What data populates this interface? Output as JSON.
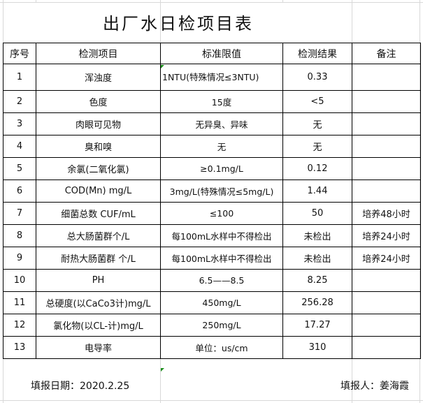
{
  "title": "出厂水日检项目表",
  "headers": [
    "序号",
    "检测项目",
    "标准限值",
    "检测结果",
    "备注"
  ],
  "rows": [
    {
      "no": "1",
      "item": "浑浊度",
      "standard": "1NTU(特殊情况≤3NTU)",
      "result": "0.33",
      "note": ""
    },
    {
      "no": "2",
      "item": "色度",
      "standard": "15度",
      "result": "<5",
      "note": ""
    },
    {
      "no": "3",
      "item": "肉眼可见物",
      "standard": "无异臭、异味",
      "result": "无",
      "note": ""
    },
    {
      "no": "4",
      "item": "臭和嗅",
      "standard": "无",
      "result": "无",
      "note": ""
    },
    {
      "no": "5",
      "item": "余氯(二氧化氯)",
      "standard": "≥0.1mg/L",
      "result": "0.12",
      "note": ""
    },
    {
      "no": "6",
      "item": "COD(Mn)   mg/L",
      "standard": "3mg/L(特殊情况≤5mg/L)",
      "result": "1.44",
      "note": ""
    },
    {
      "no": "7",
      "item": "细菌总数 CUF/mL",
      "standard": "≤100",
      "result": "50",
      "note": "培养48小时"
    },
    {
      "no": "8",
      "item": "总大肠菌群个/L",
      "standard": "每100mL水样中不得检出",
      "result": "未检出",
      "note": "培养24小时"
    },
    {
      "no": "9",
      "item": "耐热大肠菌群 个/L",
      "standard": "每100mL水样中不得检出",
      "result": "未检出",
      "note": "培养24小时"
    },
    {
      "no": "10",
      "item": "PH",
      "standard": "6.5——8.5",
      "result": "8.25",
      "note": ""
    },
    {
      "no": "11",
      "item": "总硬度(以CaCo3计)mg/L",
      "standard": "450mg/L",
      "result": "256.28",
      "note": ""
    },
    {
      "no": "12",
      "item": "氯化物(以CL-计)mg/L",
      "standard": "250mg/L",
      "result": "17.27",
      "note": ""
    },
    {
      "no": "13",
      "item": "电导率",
      "standard": "单位：us/cm",
      "result": "310",
      "note": ""
    }
  ],
  "footer": {
    "date": "填报日期：2020.2.25",
    "reporter": "填报人：姜海霞"
  }
}
